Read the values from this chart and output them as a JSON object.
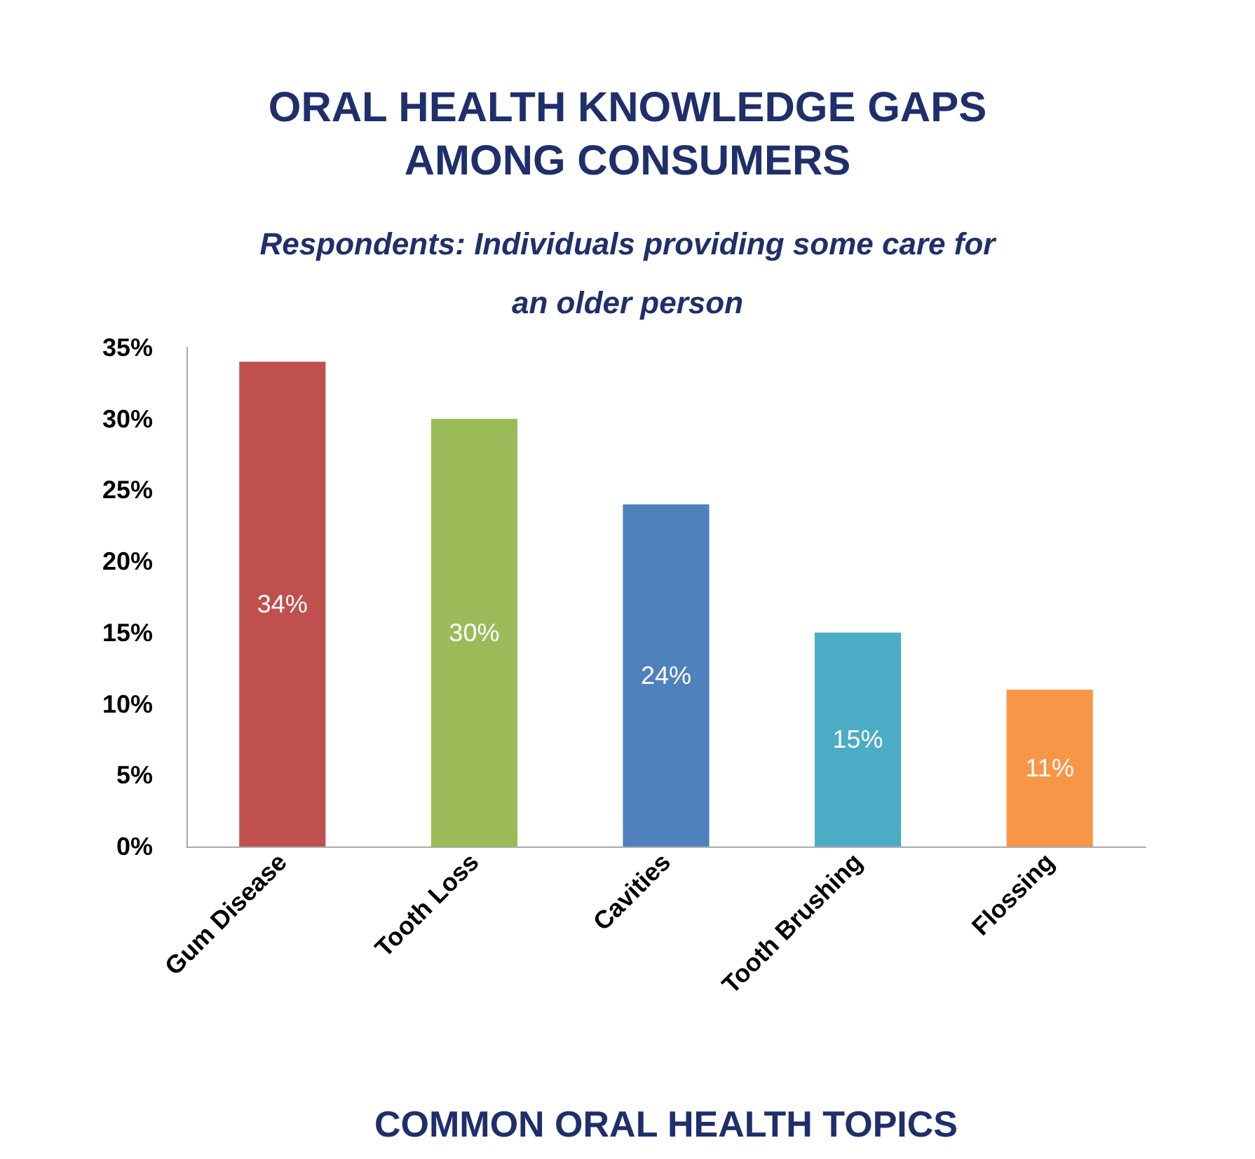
{
  "chart_data": {
    "type": "bar",
    "title": "ORAL HEALTH KNOWLEDGE GAPS\nAMONG CONSUMERS",
    "subtitle": "Respondents: Individuals providing some care for\nan older person",
    "xlabel": "COMMON ORAL HEALTH TOPICS",
    "categories": [
      "Gum Disease",
      "Tooth Loss",
      "Cavities",
      "Tooth Brushing",
      "Flossing"
    ],
    "values": [
      34,
      30,
      24,
      15,
      11
    ],
    "value_labels": [
      "34%",
      "30%",
      "24%",
      "15%",
      "11%"
    ],
    "colors": [
      "#c0504d",
      "#9bbb59",
      "#4f81bd",
      "#4bacc6",
      "#f79646"
    ],
    "ylim": [
      0,
      35
    ],
    "yticks": [
      {
        "value": 0,
        "label": "0%"
      },
      {
        "value": 5,
        "label": "5%"
      },
      {
        "value": 10,
        "label": "10%"
      },
      {
        "value": 15,
        "label": "15%"
      },
      {
        "value": 20,
        "label": "20%"
      },
      {
        "value": 25,
        "label": "25%"
      },
      {
        "value": 30,
        "label": "30%"
      },
      {
        "value": 35,
        "label": "35%"
      }
    ],
    "grid": false
  }
}
